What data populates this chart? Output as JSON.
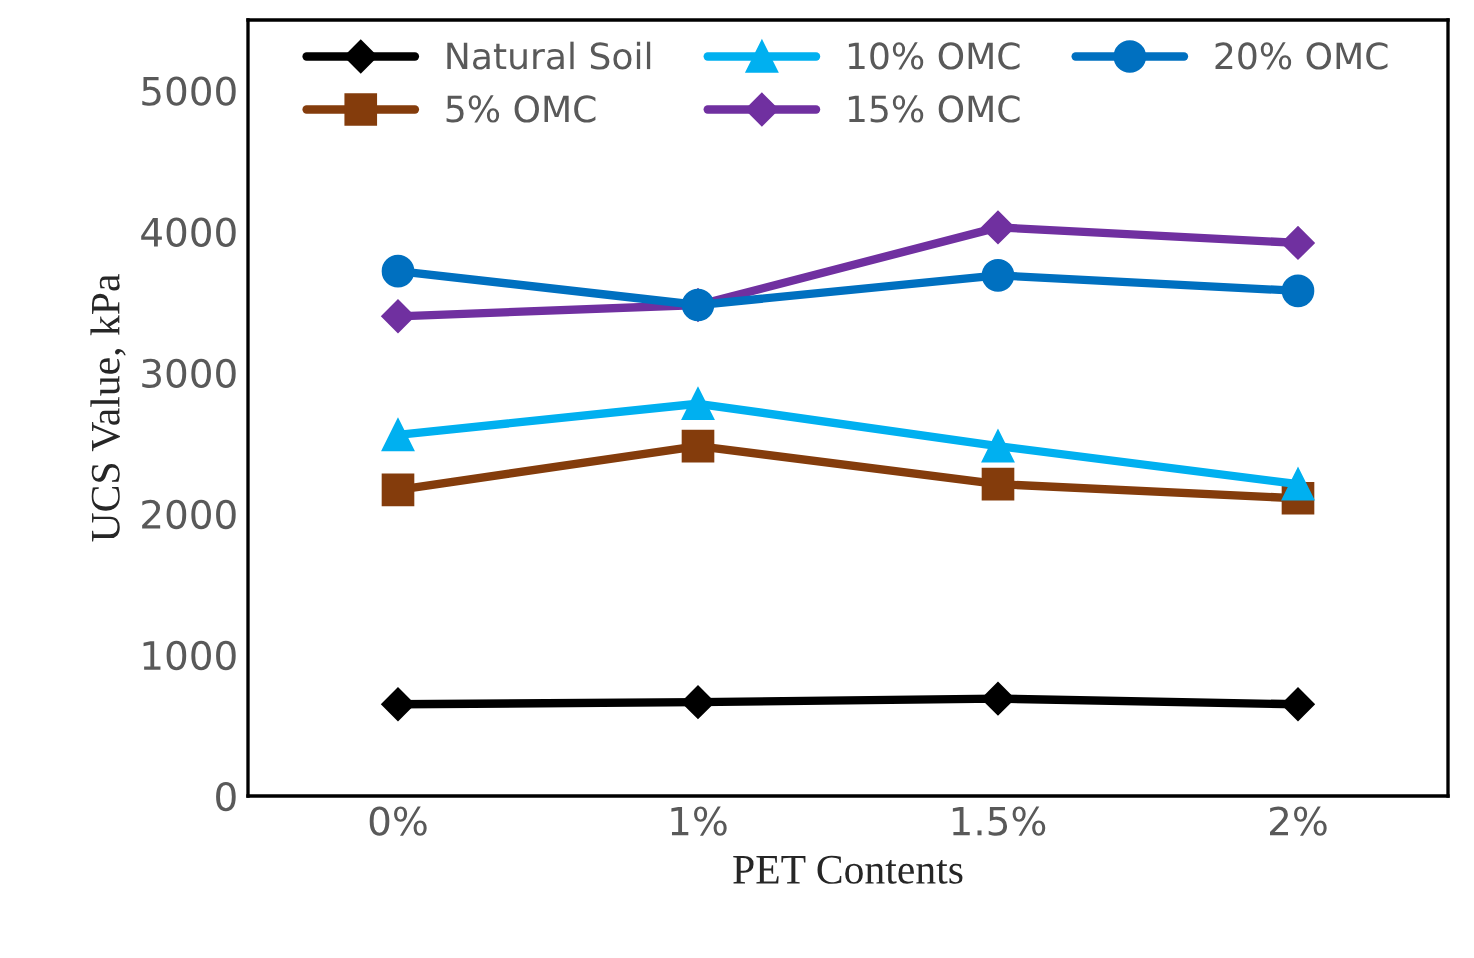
{
  "chart_data": {
    "type": "line",
    "xlabel": "PET Contents",
    "ylabel": "UCS Value, kPa",
    "categories": [
      "0%",
      "1%",
      "1.5%",
      "2%"
    ],
    "series": [
      {
        "name": "Natural Soil",
        "color": "#000000",
        "marker": "diamond",
        "values": [
          650,
          665,
          690,
          650
        ]
      },
      {
        "name": "5% OMC",
        "color": "#843c0c",
        "marker": "square",
        "values": [
          2170,
          2480,
          2210,
          2110
        ]
      },
      {
        "name": "10% OMC",
        "color": "#00b0f0",
        "marker": "triangle",
        "values": [
          2560,
          2780,
          2480,
          2210
        ]
      },
      {
        "name": "15% OMC",
        "color": "#7030a0",
        "marker": "diamond",
        "values": [
          3400,
          3480,
          4030,
          3920
        ]
      },
      {
        "name": "20% OMC",
        "color": "#0070c0",
        "marker": "circle",
        "values": [
          3720,
          3480,
          3690,
          3580
        ]
      }
    ],
    "ylim": [
      0,
      5500
    ],
    "yticks": [
      0,
      1000,
      2000,
      3000,
      4000,
      5000
    ],
    "grid": false,
    "legend": "top",
    "line_style": "solid"
  }
}
